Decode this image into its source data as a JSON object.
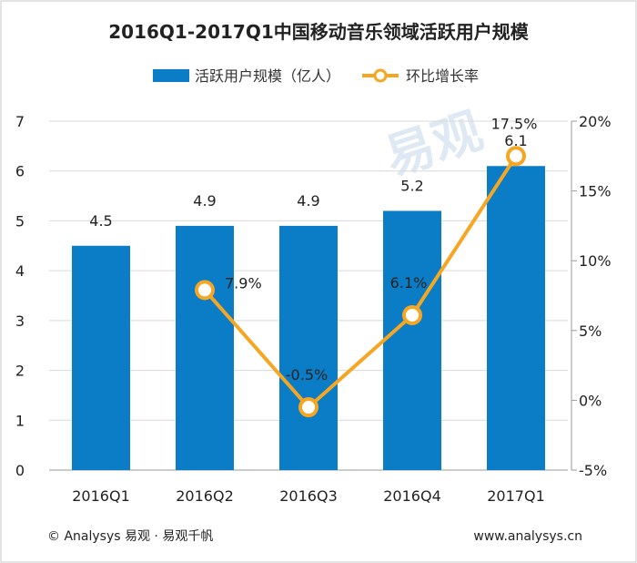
{
  "chart_data": {
    "type": "bar+line",
    "title": "2016Q1-2017Q1中国移动音乐领域活跃用户规模",
    "categories": [
      "2016Q1",
      "2016Q2",
      "2016Q3",
      "2016Q4",
      "2017Q1"
    ],
    "series": [
      {
        "name": "活跃用户规模（亿人）",
        "type": "bar",
        "axis": "left",
        "color": "#0b7dc6",
        "values": [
          4.5,
          4.9,
          4.9,
          5.2,
          6.1
        ],
        "labels": [
          "4.5",
          "4.9",
          "4.9",
          "5.2",
          "6.1"
        ]
      },
      {
        "name": "环比增长率",
        "type": "line",
        "axis": "right",
        "color": "#f5a623",
        "values": [
          null,
          7.9,
          -0.5,
          6.1,
          17.5
        ],
        "labels": [
          "",
          "7.9%",
          "-0.5%",
          "6.1%",
          "17.5%"
        ]
      }
    ],
    "y_left": {
      "min": 0,
      "max": 7,
      "ticks": [
        "0",
        "1",
        "2",
        "3",
        "4",
        "5",
        "6",
        "7"
      ]
    },
    "y_right": {
      "min": -5,
      "max": 20,
      "ticks": [
        "-5%",
        "0%",
        "5%",
        "10%",
        "15%",
        "20%"
      ]
    },
    "grid": "horizontal",
    "legend": "top"
  },
  "legend": {
    "bar_label": "活跃用户规模（亿人）",
    "line_label": "环比增长率"
  },
  "watermark": {
    "brand_cn": "易观"
  },
  "footer": {
    "left": "© Analysys 易观 · 易观千帆",
    "right": "www.analysys.cn"
  },
  "colors": {
    "bar": "#0b7dc6",
    "line": "#f5a623",
    "grid": "#d9d9d9"
  }
}
